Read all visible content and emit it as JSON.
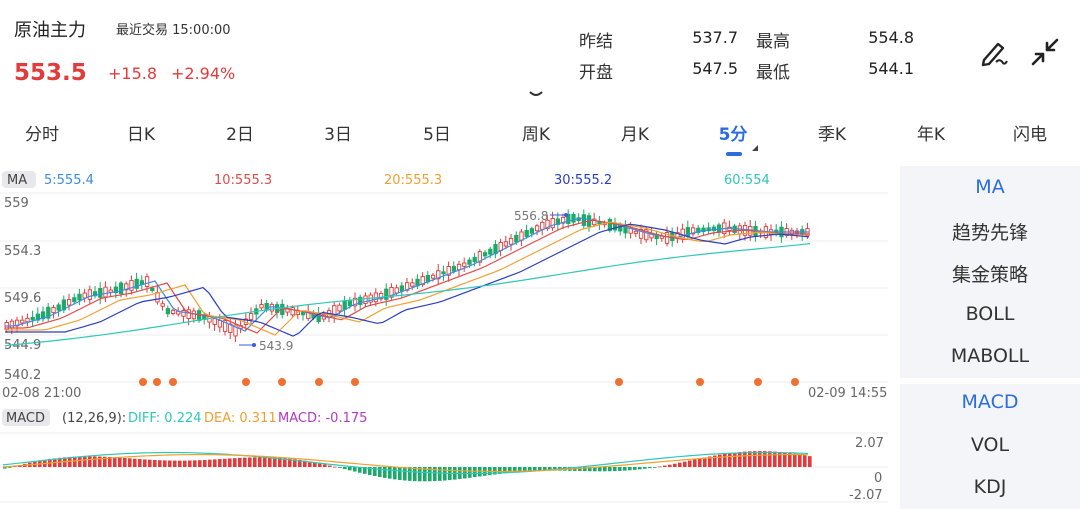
{
  "header": {
    "title": "原油主力",
    "last_trade": "最近交易  15:00:00",
    "price": "553.5",
    "change": "+15.8",
    "change_pct": "+2.94%",
    "quotes": [
      {
        "label": "昨结",
        "value": "537.7"
      },
      {
        "label": "最高",
        "value": "554.8"
      },
      {
        "label": "开盘",
        "value": "547.5"
      },
      {
        "label": "最低",
        "value": "544.1"
      }
    ],
    "icons": [
      "draw-icon",
      "collapse-icon",
      "chevron-down-icon"
    ]
  },
  "tabs": [
    "分时",
    "日K",
    "2日",
    "3日",
    "5日",
    "周K",
    "月K",
    "5分",
    "季K",
    "年K",
    "闪电"
  ],
  "active_tab": "5分",
  "ma_legend": {
    "tag": "MA",
    "items": [
      {
        "text": "5:555.4",
        "color": "#3b8de0"
      },
      {
        "text": "10:555.3",
        "color": "#e24a4a"
      },
      {
        "text": "20:555.3",
        "color": "#f0a030"
      },
      {
        "text": "30:555.2",
        "color": "#2a3fbf"
      },
      {
        "text": "60:554",
        "color": "#2ec8b8"
      }
    ]
  },
  "price_axis": [
    "559",
    "554.3",
    "549.6",
    "544.9",
    "540.2"
  ],
  "time_start": "02-08 21:00",
  "time_end": "02-09 14:55",
  "high_label": "556.8",
  "low_label": "543.9",
  "macd_legend": {
    "tag": "MACD",
    "params": "(12,26,9):",
    "diff": "DIFF: 0.224",
    "dea": "DEA: 0.311",
    "macd": "MACD: -0.175"
  },
  "macd_axis": [
    "2.07",
    "0",
    "-2.07"
  ],
  "side_menu": {
    "group1": [
      "MA",
      "趋势先锋",
      "集金策略",
      "BOLL",
      "MABOLL"
    ],
    "group2": [
      "MACD",
      "VOL",
      "KDJ"
    ],
    "active": [
      "MA",
      "MACD"
    ]
  },
  "colors": {
    "up": "#e23b3b",
    "down": "#1aaa6a",
    "accent": "#2b6de0",
    "dot": "#f07030"
  }
}
